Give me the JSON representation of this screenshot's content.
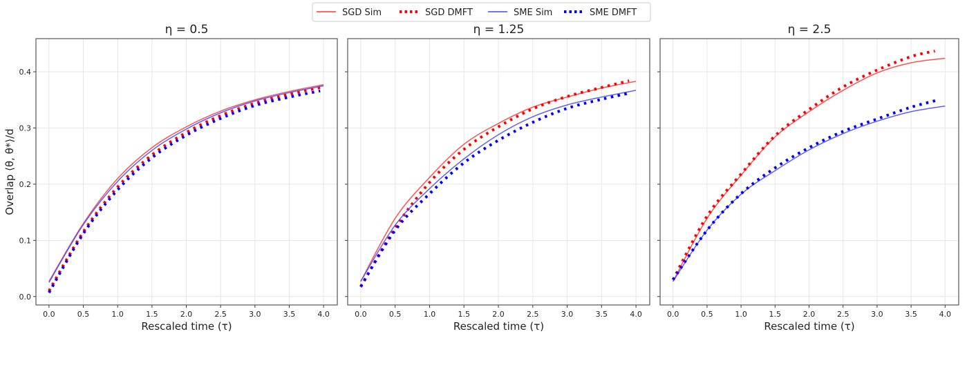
{
  "chart_data": [
    {
      "type": "line",
      "title": "η = 0.5",
      "xlabel": "Rescaled time (τ)",
      "ylabel": "Overlap ⟨θ, θ*⟩/d",
      "xlim": [
        -0.19,
        4.2
      ],
      "ylim": [
        -0.015,
        0.459
      ],
      "xticks": [
        "0.0",
        "0.5",
        "1.0",
        "1.5",
        "2.0",
        "2.5",
        "3.0",
        "3.5",
        "4.0"
      ],
      "yticks": [
        "0.0",
        "0.1",
        "0.2",
        "0.3",
        "0.4"
      ],
      "grid": true,
      "series": [
        {
          "name": "SGD Sim",
          "style": "solid",
          "color": "#ff3333",
          "x": [
            0,
            0.5,
            1,
            1.5,
            2,
            2.5,
            3,
            3.5,
            4
          ],
          "y": [
            0.027,
            0.13,
            0.21,
            0.265,
            0.302,
            0.33,
            0.35,
            0.365,
            0.377
          ]
        },
        {
          "name": "SGD DMFT",
          "style": "dotted",
          "color": "#ff0000",
          "x": [
            0,
            0.5,
            1,
            1.5,
            2,
            2.5,
            3,
            3.5,
            3.95
          ],
          "y": [
            0.01,
            0.115,
            0.195,
            0.252,
            0.292,
            0.322,
            0.344,
            0.36,
            0.372
          ]
        },
        {
          "name": "SME Sim",
          "style": "solid",
          "color": "#4444ff",
          "x": [
            0,
            0.5,
            1,
            1.5,
            2,
            2.5,
            3,
            3.5,
            4
          ],
          "y": [
            0.025,
            0.128,
            0.205,
            0.26,
            0.298,
            0.327,
            0.348,
            0.363,
            0.375
          ]
        },
        {
          "name": "SME DMFT",
          "style": "dotted",
          "color": "#0000ff",
          "x": [
            0,
            0.5,
            1,
            1.5,
            2,
            2.5,
            3,
            3.5,
            3.95
          ],
          "y": [
            0.007,
            0.112,
            0.19,
            0.247,
            0.287,
            0.317,
            0.34,
            0.355,
            0.366
          ]
        }
      ]
    },
    {
      "type": "line",
      "title": "η = 1.25",
      "xlabel": "Rescaled time (τ)",
      "xlim": [
        -0.19,
        4.2
      ],
      "ylim": [
        -0.015,
        0.459
      ],
      "xticks": [
        "0.0",
        "0.5",
        "1.0",
        "1.5",
        "2.0",
        "2.5",
        "3.0",
        "3.5",
        "4.0"
      ],
      "grid": true,
      "series": [
        {
          "name": "SGD Sim",
          "style": "solid",
          "color": "#ff3333",
          "x": [
            0,
            0.5,
            1,
            1.5,
            2,
            2.5,
            3,
            3.5,
            4
          ],
          "y": [
            0.027,
            0.139,
            0.212,
            0.271,
            0.308,
            0.337,
            0.355,
            0.371,
            0.383
          ]
        },
        {
          "name": "SGD DMFT",
          "style": "dotted",
          "color": "#ff0000",
          "x": [
            0,
            0.5,
            1,
            1.5,
            2,
            2.5,
            3,
            3.5,
            3.9
          ],
          "y": [
            0.017,
            0.122,
            0.203,
            0.262,
            0.302,
            0.334,
            0.356,
            0.372,
            0.384
          ]
        },
        {
          "name": "SME Sim",
          "style": "solid",
          "color": "#4444ff",
          "x": [
            0,
            0.5,
            1,
            1.5,
            2,
            2.5,
            3,
            3.5,
            4
          ],
          "y": [
            0.027,
            0.127,
            0.192,
            0.245,
            0.288,
            0.32,
            0.341,
            0.355,
            0.367
          ]
        },
        {
          "name": "SME DMFT",
          "style": "dotted",
          "color": "#0000ff",
          "x": [
            0,
            0.5,
            1,
            1.5,
            2,
            2.5,
            3,
            3.5,
            3.9
          ],
          "y": [
            0.018,
            0.118,
            0.183,
            0.238,
            0.278,
            0.31,
            0.335,
            0.351,
            0.362
          ]
        }
      ]
    },
    {
      "type": "line",
      "title": "η = 2.5",
      "xlabel": "Rescaled time (τ)",
      "xlim": [
        -0.19,
        4.2
      ],
      "ylim": [
        -0.015,
        0.459
      ],
      "xticks": [
        "0.0",
        "0.5",
        "1.0",
        "1.5",
        "2.0",
        "2.5",
        "3.0",
        "3.5",
        "4.0"
      ],
      "grid": true,
      "series": [
        {
          "name": "SGD Sim",
          "style": "solid",
          "color": "#ff3333",
          "x": [
            0,
            0.5,
            1,
            1.5,
            2,
            2.5,
            3,
            3.5,
            4
          ],
          "y": [
            0.027,
            0.139,
            0.216,
            0.284,
            0.329,
            0.367,
            0.398,
            0.416,
            0.424
          ]
        },
        {
          "name": "SGD DMFT",
          "style": "dotted",
          "color": "#ff0000",
          "x": [
            0,
            0.5,
            1,
            1.5,
            2,
            2.5,
            3,
            3.5,
            3.85
          ],
          "y": [
            0.03,
            0.143,
            0.218,
            0.286,
            0.333,
            0.373,
            0.403,
            0.427,
            0.437
          ]
        },
        {
          "name": "SME Sim",
          "style": "solid",
          "color": "#4444ff",
          "x": [
            0,
            0.5,
            1,
            1.5,
            2,
            2.5,
            3,
            3.5,
            4
          ],
          "y": [
            0.027,
            0.118,
            0.182,
            0.224,
            0.261,
            0.29,
            0.312,
            0.329,
            0.339
          ]
        },
        {
          "name": "SME DMFT",
          "style": "dotted",
          "color": "#0000ff",
          "x": [
            0,
            0.5,
            1,
            1.5,
            2,
            2.5,
            3,
            3.5,
            3.87
          ],
          "y": [
            0.03,
            0.118,
            0.183,
            0.229,
            0.265,
            0.294,
            0.316,
            0.337,
            0.349
          ]
        }
      ]
    }
  ],
  "legend": {
    "placement": "top-center",
    "items": [
      {
        "label": "SGD Sim",
        "style": "solid",
        "color": "#ff3333"
      },
      {
        "label": "SGD DMFT",
        "style": "dotted",
        "color": "#ff0000"
      },
      {
        "label": "SME Sim",
        "style": "solid",
        "color": "#4444ff"
      },
      {
        "label": "SME DMFT",
        "style": "dotted",
        "color": "#0000ff"
      }
    ]
  }
}
